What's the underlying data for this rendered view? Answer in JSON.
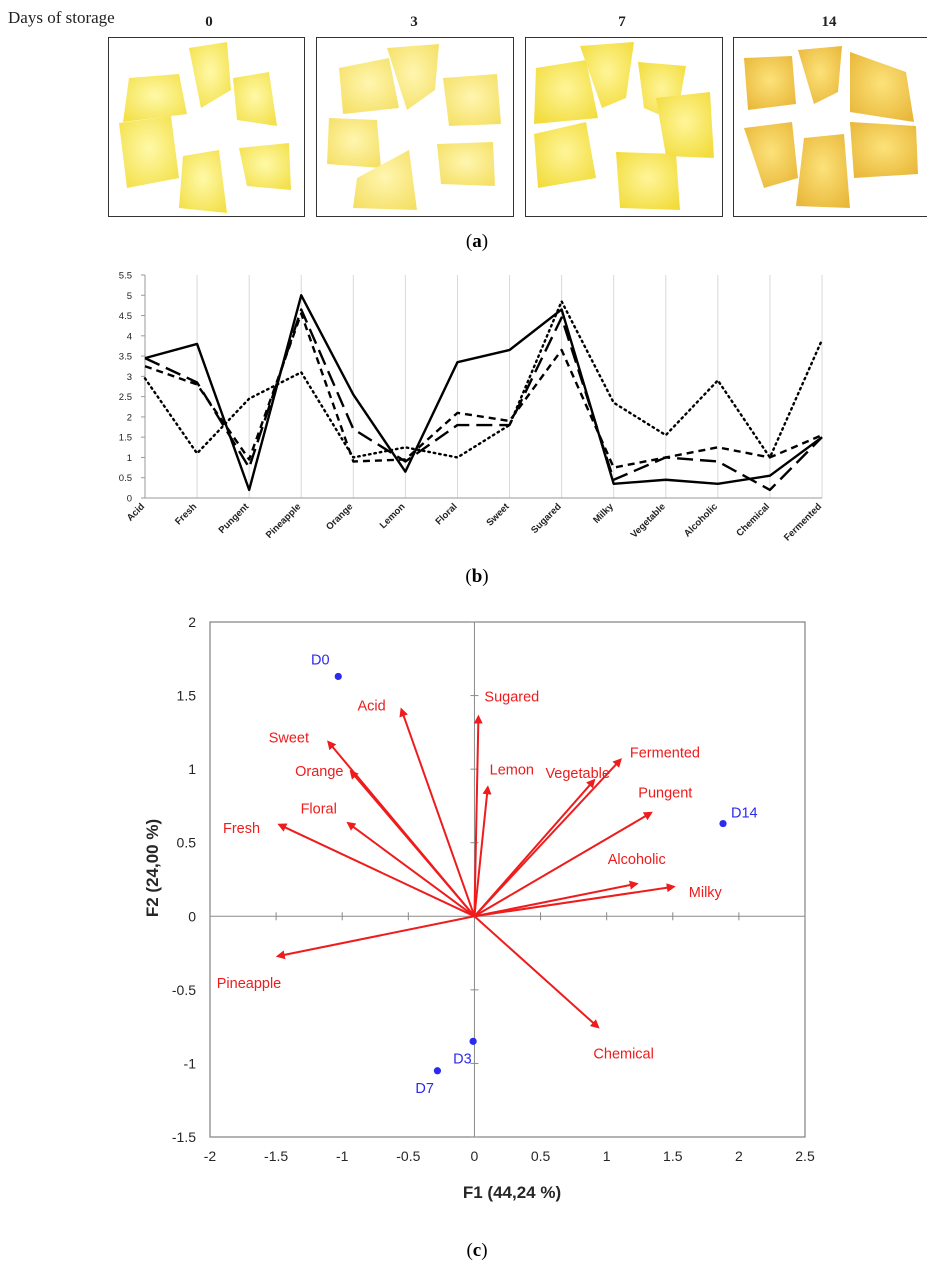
{
  "panel_a": {
    "row_label": "Days of storage",
    "days": [
      "0",
      "3",
      "7",
      "14"
    ],
    "panel_label": "a"
  },
  "panel_b": {
    "panel_label": "b"
  },
  "panel_c": {
    "panel_label": "c"
  },
  "chart_data": [
    {
      "type": "line",
      "title": "",
      "xlabel": "",
      "ylabel": "",
      "ylim": [
        0,
        5.5
      ],
      "yticks": [
        "0",
        "0.5",
        "1",
        "1.5",
        "2",
        "2.5",
        "3",
        "3.5",
        "4",
        "4.5",
        "5",
        "5.5"
      ],
      "grid": "vertical",
      "categories": [
        "Acid",
        "Fresh",
        "Pungent",
        "Pineapple",
        "Orange",
        "Lemon",
        "Floral",
        "Sweet",
        "Sugared",
        "Milky",
        "Vegetable",
        "Alcoholic",
        "Chemical",
        "Fermented"
      ],
      "series": [
        {
          "style": "solid",
          "values": [
            3.45,
            3.8,
            0.2,
            5.0,
            2.55,
            0.65,
            3.35,
            3.65,
            4.65,
            0.35,
            0.45,
            0.35,
            0.55,
            1.5
          ]
        },
        {
          "style": "long-dash",
          "values": [
            3.45,
            2.85,
            0.75,
            4.65,
            1.7,
            0.9,
            1.8,
            1.8,
            4.45,
            0.45,
            1.0,
            0.9,
            0.2,
            1.5
          ]
        },
        {
          "style": "short-dash",
          "values": [
            3.25,
            2.8,
            0.95,
            4.55,
            0.9,
            0.95,
            2.1,
            1.9,
            3.65,
            0.75,
            1.0,
            1.25,
            1.0,
            1.55
          ]
        },
        {
          "style": "dotted",
          "values": [
            2.95,
            1.1,
            2.45,
            3.1,
            1.0,
            1.25,
            1.0,
            1.8,
            4.85,
            2.35,
            1.55,
            2.9,
            1.0,
            3.9
          ]
        }
      ]
    },
    {
      "type": "scatter",
      "title": "",
      "xlabel": "F1 (44,24 %)",
      "ylabel": "F2 (24,00 %)",
      "xlim": [
        -2,
        2.5
      ],
      "ylim": [
        -1.5,
        2
      ],
      "xticks": [
        "-2",
        "-1.5",
        "-1",
        "-0.5",
        "0",
        "0.5",
        "1",
        "1.5",
        "2",
        "2.5"
      ],
      "yticks": [
        "-1.5",
        "-1",
        "-0.5",
        "0",
        "0.5",
        "1",
        "1.5",
        "2"
      ],
      "colors": {
        "vectors": "#ee1c1c",
        "observations": "#2b2bf0"
      },
      "observations": [
        {
          "label": "D0",
          "x": -1.03,
          "y": 1.63
        },
        {
          "label": "D14",
          "x": 1.88,
          "y": 0.63
        },
        {
          "label": "D3",
          "x": -0.01,
          "y": -0.85
        },
        {
          "label": "D7",
          "x": -0.28,
          "y": -1.05
        }
      ],
      "variables": [
        {
          "label": "Sugared",
          "x": 0.03,
          "y": 1.35
        },
        {
          "label": "Acid",
          "x": -0.55,
          "y": 1.4
        },
        {
          "label": "Sweet",
          "x": -1.1,
          "y": 1.18
        },
        {
          "label": "Orange",
          "x": -0.93,
          "y": 0.98
        },
        {
          "label": "Floral",
          "x": -0.95,
          "y": 0.63
        },
        {
          "label": "Fresh",
          "x": -1.47,
          "y": 0.62
        },
        {
          "label": "Lemon",
          "x": 0.1,
          "y": 0.87
        },
        {
          "label": "Vegetable",
          "x": 0.9,
          "y": 0.92
        },
        {
          "label": "Fermented",
          "x": 1.1,
          "y": 1.06
        },
        {
          "label": "Pungent",
          "x": 1.33,
          "y": 0.7
        },
        {
          "label": "Alcoholic",
          "x": 1.22,
          "y": 0.22
        },
        {
          "label": "Milky",
          "x": 1.5,
          "y": 0.2
        },
        {
          "label": "Pineapple",
          "x": -1.48,
          "y": -0.27
        },
        {
          "label": "Chemical",
          "x": 0.93,
          "y": -0.75
        }
      ]
    }
  ]
}
